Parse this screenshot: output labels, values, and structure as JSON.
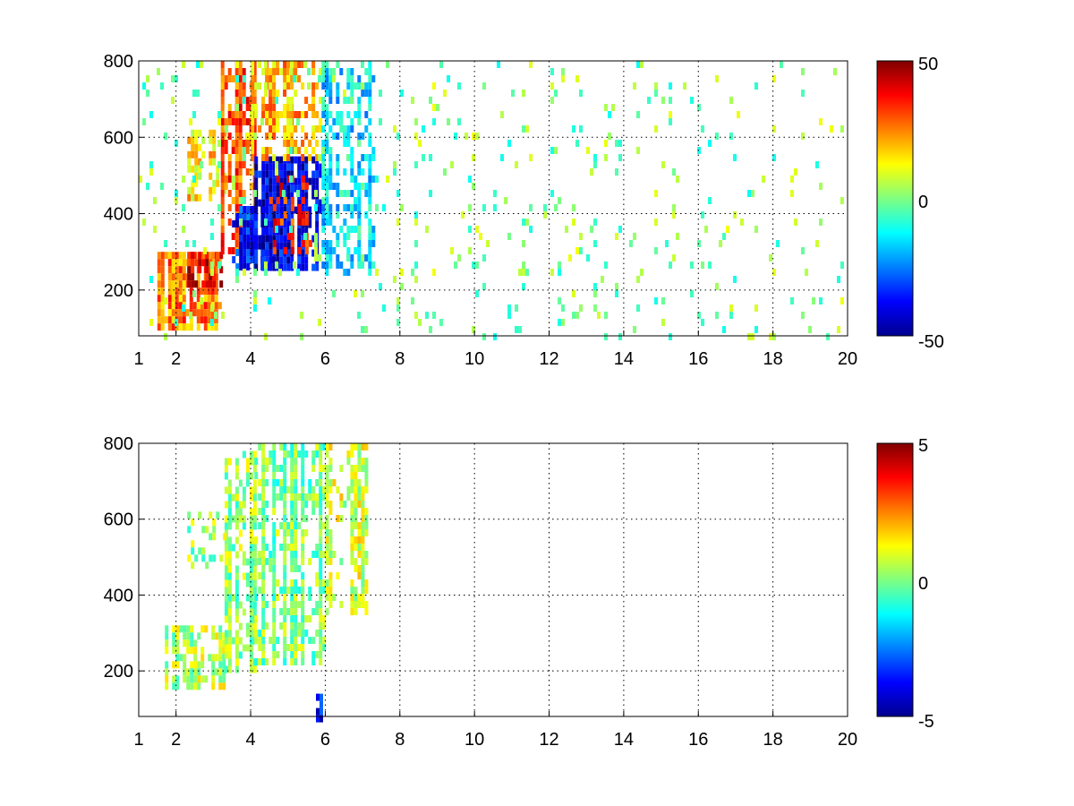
{
  "chart_data": [
    {
      "type": "heatmap",
      "title": "",
      "xlabel": "",
      "ylabel": "",
      "xlim": [
        1,
        20
      ],
      "ylim": [
        80,
        800
      ],
      "x_ticks": [
        1,
        2,
        4,
        6,
        8,
        10,
        12,
        14,
        16,
        18,
        20
      ],
      "y_ticks": [
        200,
        400,
        600,
        800
      ],
      "grid": true,
      "colormap": "jet",
      "colorbar": {
        "limits": [
          -50,
          50
        ],
        "tick_labels": [
          "50",
          "0",
          "-50"
        ]
      },
      "x_tick_labels": [
        "1",
        "2",
        "4",
        "6",
        "8",
        "10",
        "12",
        "14",
        "16",
        "18",
        "20"
      ],
      "y_tick_labels": [
        "200",
        "400",
        "600",
        "800"
      ],
      "regions": [
        {
          "x": [
            1.5,
            3.2
          ],
          "y": [
            100,
            300
          ],
          "value": 25,
          "density": 0.7
        },
        {
          "x": [
            2.3,
            3.2
          ],
          "y": [
            220,
            300
          ],
          "value": 40,
          "density": 0.8
        },
        {
          "x": [
            2.3,
            3.3
          ],
          "y": [
            450,
            620
          ],
          "value": 15,
          "density": 0.4
        },
        {
          "x": [
            3.2,
            4.1
          ],
          "y": [
            300,
            800
          ],
          "value": 30,
          "density": 0.7
        },
        {
          "x": [
            3.5,
            4.6
          ],
          "y": [
            260,
            420
          ],
          "value": -35,
          "density": 0.6
        },
        {
          "x": [
            4.1,
            5.9
          ],
          "y": [
            250,
            550
          ],
          "value": -40,
          "density": 0.7
        },
        {
          "x": [
            4.5,
            5.6
          ],
          "y": [
            300,
            500
          ],
          "value": 35,
          "density": 0.35
        },
        {
          "x": [
            4.0,
            6.0
          ],
          "y": [
            550,
            800
          ],
          "value": 20,
          "density": 0.5
        },
        {
          "x": [
            5.9,
            7.3
          ],
          "y": [
            250,
            800
          ],
          "value": -15,
          "density": 0.45
        },
        {
          "x": [
            1.0,
            20.0
          ],
          "y": [
            80,
            800
          ],
          "value": 0,
          "density": 0.06
        }
      ]
    },
    {
      "type": "heatmap",
      "title": "",
      "xlabel": "",
      "ylabel": "",
      "xlim": [
        1,
        20
      ],
      "ylim": [
        80,
        800
      ],
      "x_ticks": [
        1,
        2,
        4,
        6,
        8,
        10,
        12,
        14,
        16,
        18,
        20
      ],
      "y_ticks": [
        200,
        400,
        600,
        800
      ],
      "grid": true,
      "colormap": "jet",
      "colorbar": {
        "limits": [
          -5,
          5
        ],
        "tick_labels": [
          "5",
          "0",
          "-5"
        ]
      },
      "x_tick_labels": [
        "1",
        "2",
        "4",
        "6",
        "8",
        "10",
        "12",
        "14",
        "16",
        "18",
        "20"
      ],
      "y_tick_labels": [
        "200",
        "400",
        "600",
        "800"
      ],
      "regions": [
        {
          "x": [
            1.7,
            3.3
          ],
          "y": [
            160,
            320
          ],
          "value": 0.5,
          "density": 0.5
        },
        {
          "x": [
            3.3,
            4.1
          ],
          "y": [
            200,
            780
          ],
          "value": 0.2,
          "density": 0.55
        },
        {
          "x": [
            4.1,
            6.0
          ],
          "y": [
            220,
            800
          ],
          "value": 0.0,
          "density": 0.6
        },
        {
          "x": [
            6.0,
            7.1
          ],
          "y": [
            350,
            800
          ],
          "value": 0.8,
          "density": 0.45
        },
        {
          "x": [
            2.3,
            3.3
          ],
          "y": [
            480,
            620
          ],
          "value": 0.3,
          "density": 0.3
        },
        {
          "x": [
            5.75,
            5.85
          ],
          "y": [
            80,
            140
          ],
          "value": -3.5,
          "density": 1.0
        }
      ]
    }
  ]
}
